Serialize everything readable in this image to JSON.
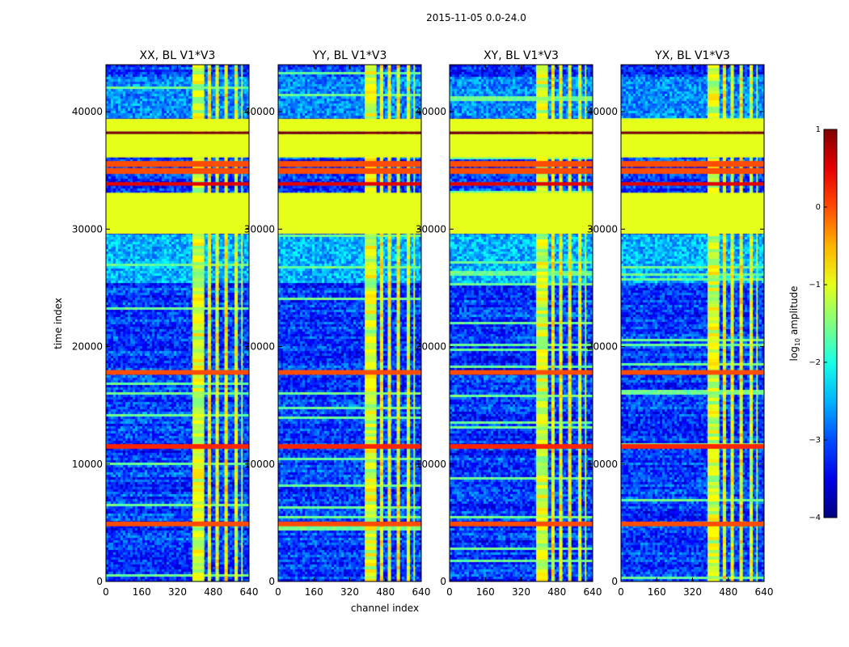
{
  "chart_data": {
    "type": "heatmap",
    "suptitle": "2015-11-05 0.0-24.0",
    "xlabel": "channel index",
    "ylabel": "time index",
    "xlim": [
      0,
      640
    ],
    "ylim": [
      0,
      44000
    ],
    "x_ticks": [
      0,
      160,
      320,
      480,
      640
    ],
    "y_ticks": [
      0,
      10000,
      20000,
      30000,
      40000
    ],
    "colorbar": {
      "label": "log10 amplitude",
      "range": [
        -4,
        1
      ],
      "ticks": [
        1,
        0,
        -1,
        -2,
        -3,
        -4
      ],
      "tick_labels": [
        "1",
        "0",
        "−1",
        "−2",
        "−3",
        "−4"
      ],
      "colormap": "jet"
    },
    "panels": [
      {
        "title": "XX, BL V1*V3",
        "seed": 11
      },
      {
        "title": "YY, BL V1*V3",
        "seed": 23
      },
      {
        "title": "XY, BL V1*V3",
        "seed": 37
      },
      {
        "title": "YX, BL V1*V3",
        "seed": 53
      }
    ],
    "flat_bands": [
      {
        "t0": 38300,
        "t1": 39400,
        "value": -1
      },
      {
        "t0": 36100,
        "t1": 38100,
        "value": -1
      },
      {
        "t0": 29600,
        "t1": 33100,
        "value": -1
      }
    ],
    "hot_bands": [
      {
        "t0": 38100,
        "t1": 38300,
        "value": 1
      },
      {
        "t0": 35300,
        "t1": 35800,
        "value": 0
      },
      {
        "t0": 34700,
        "t1": 35200,
        "value": 0
      },
      {
        "t0": 33700,
        "t1": 34000,
        "value": 0.5
      },
      {
        "t0": 17600,
        "t1": 18000,
        "value": 0
      },
      {
        "t0": 11300,
        "t1": 11700,
        "value": 0.2
      },
      {
        "t0": 4700,
        "t1": 5100,
        "value": 0
      }
    ],
    "rfi_channels": [
      {
        "c0": 387,
        "c1": 440,
        "value": -1.2
      },
      {
        "c0": 455,
        "c1": 470,
        "value": -1.0
      },
      {
        "c0": 490,
        "c1": 505,
        "value": -1.1
      },
      {
        "c0": 530,
        "c1": 545,
        "value": -1.0
      },
      {
        "c0": 575,
        "c1": 590,
        "value": -1.2
      },
      {
        "c0": 605,
        "c1": 612,
        "value": -1.4
      }
    ]
  }
}
